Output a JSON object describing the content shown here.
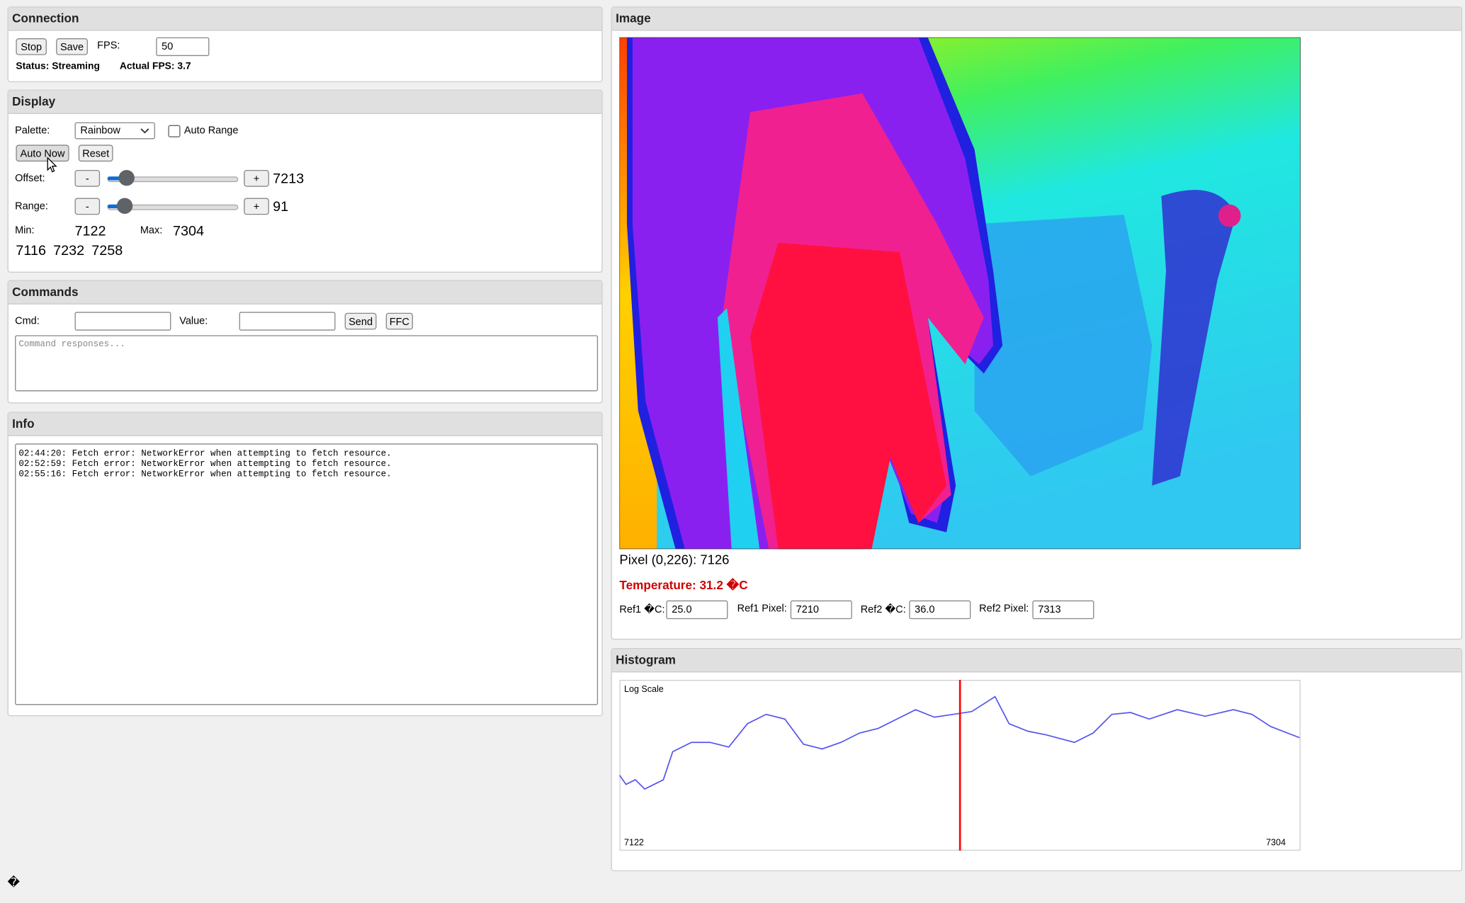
{
  "connection": {
    "title": "Connection",
    "stop": "Stop",
    "save": "Save",
    "fps_label": "FPS:",
    "fps_value": "50",
    "status": "Status: Streaming",
    "actual_fps": "Actual FPS: 3.7"
  },
  "display": {
    "title": "Display",
    "palette_label": "Palette:",
    "palette_value": "Rainbow",
    "auto_range": "Auto Range",
    "auto_now": "Auto Now",
    "reset": "Reset",
    "offset_label": "Offset:",
    "minus": "-",
    "plus": "+",
    "offset_value": 7213,
    "range_label": "Range:",
    "range_value": 91,
    "min_label": "Min:",
    "min_value": 7122,
    "max_label": "Max:",
    "max_value": 7304,
    "stats": [
      7116,
      7232,
      7258
    ]
  },
  "commands": {
    "title": "Commands",
    "cmd_label": "Cmd:",
    "value_label": "Value:",
    "send": "Send",
    "ffc": "FFC",
    "placeholder": "Command responses..."
  },
  "info": {
    "title": "Info",
    "log": [
      "02:44:20: Fetch error: NetworkError when attempting to fetch resource.",
      "02:52:59: Fetch error: NetworkError when attempting to fetch resource.",
      "02:55:16: Fetch error: NetworkError when attempting to fetch resource."
    ]
  },
  "image": {
    "title": "Image",
    "pixel": "Pixel (0,226): 7126",
    "temperature": "Temperature: 31.2 �C",
    "ref1c_label": "Ref1 �C:",
    "ref1c": "25.0",
    "ref1p_label": "Ref1 Pixel:",
    "ref1p": "7210",
    "ref2c_label": "Ref2 �C:",
    "ref2c": "36.0",
    "ref2p_label": "Ref2 Pixel:",
    "ref2p": "7313"
  },
  "histogram": {
    "title": "Histogram",
    "mode": "Log Scale",
    "min_label": "7122",
    "max_label": "7304"
  },
  "footer": {
    "glyph": "�"
  }
}
